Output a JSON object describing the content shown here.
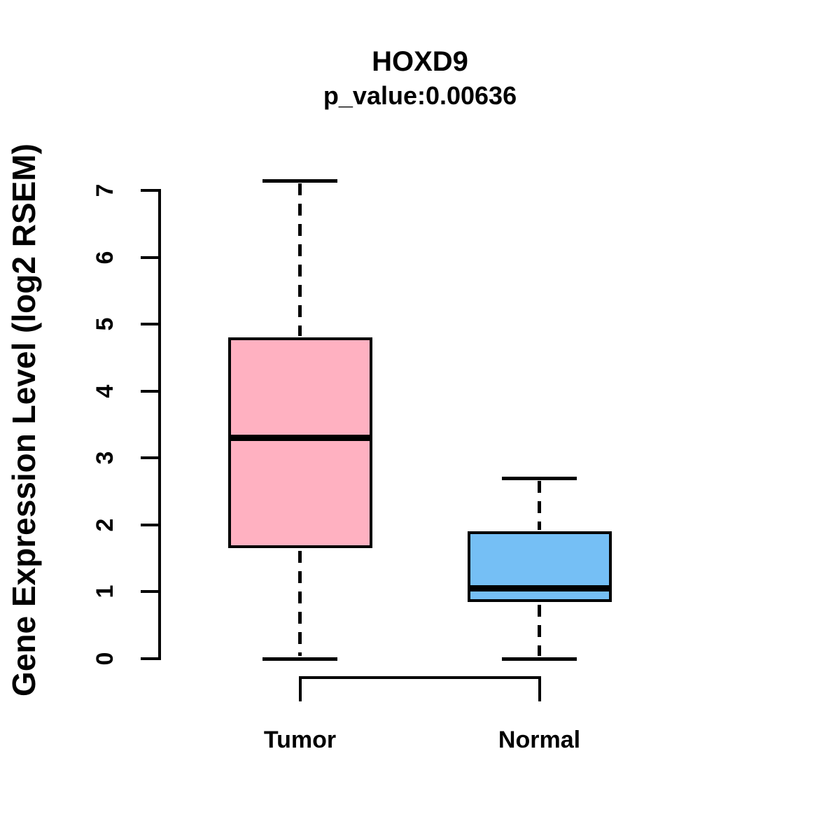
{
  "header": {
    "title": "HOXD9",
    "subtitle": "p_value:0.00636"
  },
  "chart_data": {
    "type": "boxplot",
    "title": "HOXD9",
    "subtitle": "p_value:0.00636",
    "xlabel": "",
    "ylabel": "Gene Expression Level (log2 RSEM)",
    "ylim": [
      0,
      7
    ],
    "yticks": [
      0,
      1,
      2,
      3,
      4,
      5,
      6,
      7
    ],
    "grid": false,
    "legend": "none",
    "groups": [
      {
        "label": "Tumor",
        "fill": "#FFB1C1",
        "whisker_low": 0,
        "q1": 1.65,
        "median": 3.3,
        "q3": 4.8,
        "whisker_high": 7.15
      },
      {
        "label": "Normal",
        "fill": "#75BFF5",
        "whisker_low": 0,
        "q1": 0.85,
        "median": 1.05,
        "q3": 1.9,
        "whisker_high": 2.7
      }
    ],
    "comparison_bracket": {
      "groups": [
        "Tumor",
        "Normal"
      ]
    },
    "line_color": "#000000"
  }
}
